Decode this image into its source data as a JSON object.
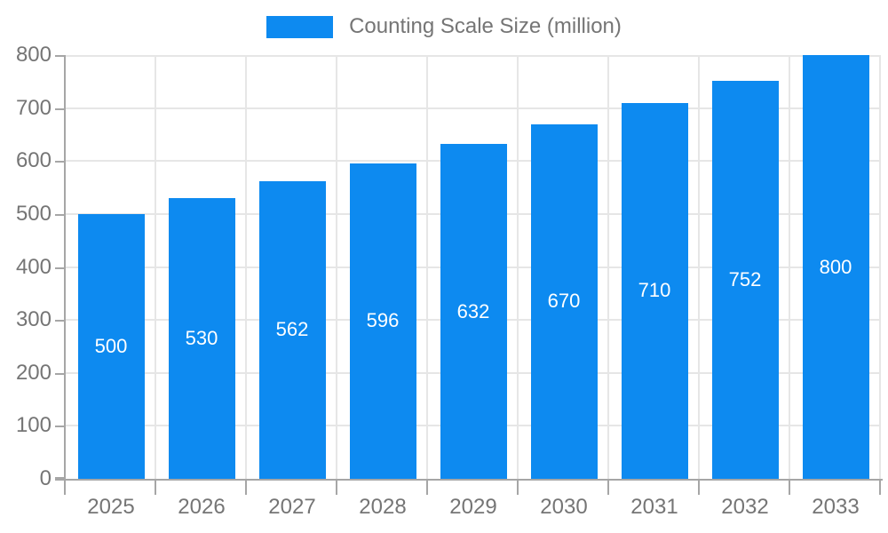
{
  "legend": {
    "label": "Counting Scale Size (million)"
  },
  "chart_data": {
    "type": "bar",
    "title": "Counting Scale Size (million)",
    "categories": [
      "2025",
      "2026",
      "2027",
      "2028",
      "2029",
      "2030",
      "2031",
      "2032",
      "2033"
    ],
    "values": [
      500,
      530,
      562,
      596,
      632,
      670,
      710,
      752,
      800
    ],
    "series": [
      {
        "name": "Counting Scale Size (million)",
        "values": [
          500,
          530,
          562,
          596,
          632,
          670,
          710,
          752,
          800
        ]
      }
    ],
    "xlabel": "",
    "ylabel": "",
    "ylim": [
      0,
      800
    ],
    "ytick_step": 100,
    "grid": true,
    "legend_position": "top",
    "value_labels": "inside-center",
    "colors": {
      "bar": "#0d8af0",
      "value_label": "#ffffff",
      "axis_text": "#757575",
      "legend_text": "#757575",
      "gridline": "#e6e6e6",
      "axis_line": "#a6a6a6"
    }
  }
}
